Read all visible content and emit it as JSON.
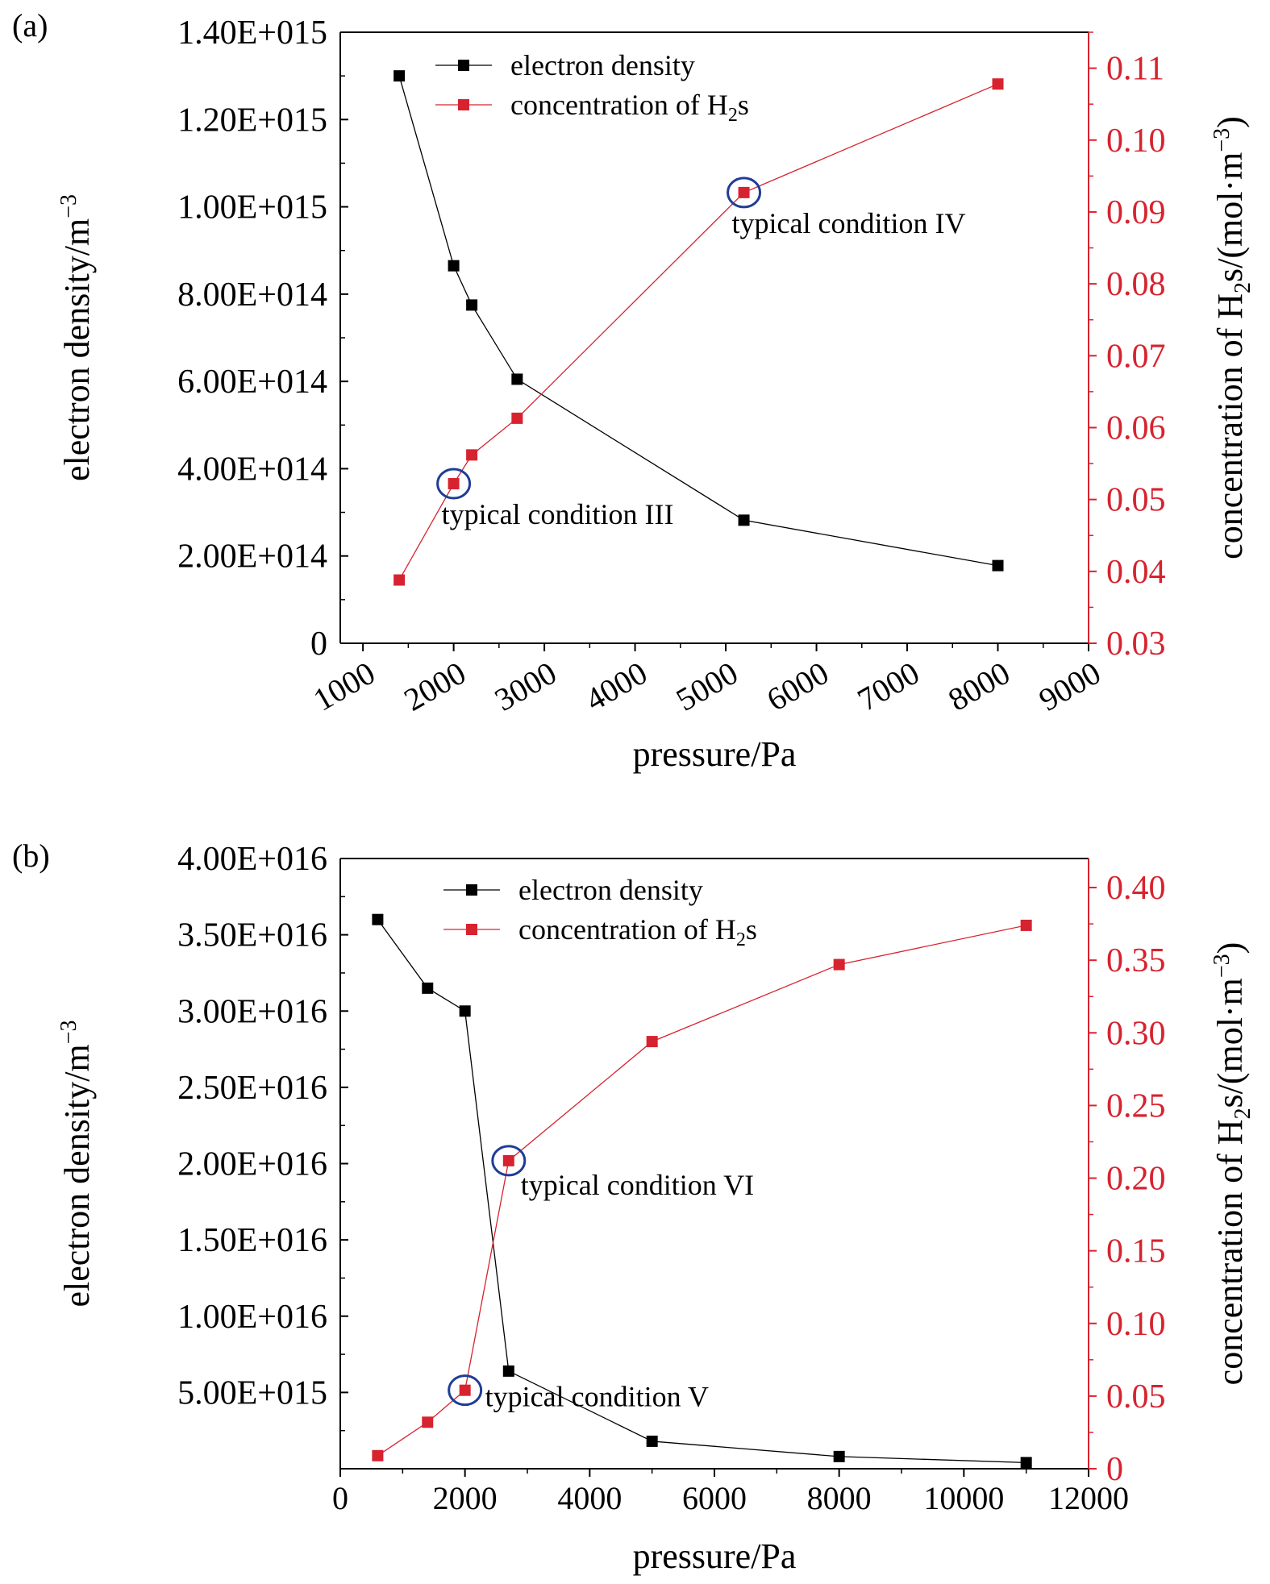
{
  "colors": {
    "left_axis": "#000000",
    "right_axis": "#d7232f",
    "highlight": "#1f3c96"
  },
  "chart_data": [
    {
      "panel_label": "(a)",
      "type": "line",
      "xlabel": "pressure/Pa",
      "xlim": [
        750,
        9000
      ],
      "xticks": [
        "1000",
        "2000",
        "3000",
        "4000",
        "5000",
        "6000",
        "7000",
        "8000",
        "9000"
      ],
      "xtick_values": [
        1000,
        2000,
        3000,
        4000,
        5000,
        6000,
        7000,
        8000,
        9000
      ],
      "ylabel_left": {
        "main": "electron density/m",
        "sup": "−3"
      },
      "ylim_left": [
        0,
        1400000000000000.0
      ],
      "yticks_left": [
        "0",
        "2.00E+014",
        "4.00E+014",
        "6.00E+014",
        "8.00E+014",
        "1.00E+015",
        "1.20E+015",
        "1.40E+015"
      ],
      "ytick_values_left": [
        0,
        200000000000000.0,
        400000000000000.0,
        600000000000000.0,
        800000000000000.0,
        1000000000000000.0,
        1200000000000000.0,
        1400000000000000.0
      ],
      "ylabel_right": {
        "pre": "concentration of H",
        "sub": "2",
        "mid": "s/(mol·m",
        "sup": "−3",
        "post": ")"
      },
      "ylim_right": [
        0.03,
        0.115
      ],
      "yticks_right": [
        "0.03",
        "0.04",
        "0.05",
        "0.06",
        "0.07",
        "0.08",
        "0.09",
        "0.10",
        "0.11"
      ],
      "ytick_values_right": [
        0.03,
        0.04,
        0.05,
        0.06,
        0.07,
        0.08,
        0.09,
        0.1,
        0.11
      ],
      "x_tick_rotation": -30,
      "series": [
        {
          "name": "electron density",
          "axis": "left",
          "color": "#000000",
          "x": [
            1400,
            2000,
            2200,
            2700,
            5200,
            8000
          ],
          "y": [
            1300000000000000.0,
            865000000000000.0,
            775000000000000.0,
            605000000000000.0,
            282000000000000.0,
            178000000000000.0
          ]
        },
        {
          "name_pre": "concentration of H",
          "name_sub": "2",
          "name_post": "s",
          "axis": "right",
          "color": "#d7232f",
          "x": [
            1400,
            2000,
            2200,
            2700,
            5200,
            8000
          ],
          "y": [
            0.0388,
            0.0522,
            0.0562,
            0.0613,
            0.0927,
            0.1078
          ]
        }
      ],
      "annotations": [
        {
          "text": "typical condition III",
          "x": 2000,
          "y": 0.0522,
          "axis": "right",
          "dx": -15,
          "dy": 50
        },
        {
          "text": "typical condition IV",
          "x": 5200,
          "y": 0.0927,
          "axis": "right",
          "dx": -15,
          "dy": 50
        }
      ],
      "legend_position": "top-center"
    },
    {
      "panel_label": "(b)",
      "type": "line",
      "xlabel": "pressure/Pa",
      "xlim": [
        0,
        12000
      ],
      "xticks": [
        "0",
        "2000",
        "4000",
        "6000",
        "8000",
        "10000",
        "12000"
      ],
      "xtick_values": [
        0,
        2000,
        4000,
        6000,
        8000,
        10000,
        12000
      ],
      "ylabel_left": {
        "main": "electron density/m",
        "sup": "−3"
      },
      "ylim_left": [
        0,
        4e+16
      ],
      "yticks_left": [
        "5.00E+015",
        "1.00E+016",
        "1.50E+016",
        "2.00E+016",
        "2.50E+016",
        "3.00E+016",
        "3.50E+016",
        "4.00E+016"
      ],
      "ytick_values_left": [
        5000000000000000.0,
        1e+16,
        1.5e+16,
        2e+16,
        2.5e+16,
        3e+16,
        3.5e+16,
        4e+16
      ],
      "ylabel_right": {
        "pre": "concentration of H",
        "sub": "2",
        "mid": "s/(mol·m",
        "sup": "−3",
        "post": ")"
      },
      "ylim_right": [
        0,
        0.42
      ],
      "yticks_right": [
        "0",
        "0.05",
        "0.10",
        "0.15",
        "0.20",
        "0.25",
        "0.30",
        "0.35",
        "0.40"
      ],
      "ytick_values_right": [
        0,
        0.05,
        0.1,
        0.15,
        0.2,
        0.25,
        0.3,
        0.35,
        0.4
      ],
      "x_tick_rotation": 0,
      "series": [
        {
          "name": "electron density",
          "axis": "left",
          "color": "#000000",
          "x": [
            600,
            1400,
            2000,
            2700,
            5000,
            8000,
            11000
          ],
          "y": [
            3.6e+16,
            3.15e+16,
            3e+16,
            6400000000000000.0,
            1800000000000000.0,
            800000000000000.0,
            400000000000000.0
          ]
        },
        {
          "name_pre": "concentration of H",
          "name_sub": "2",
          "name_post": "s",
          "axis": "right",
          "color": "#d7232f",
          "x": [
            600,
            1400,
            2000,
            2700,
            5000,
            8000,
            11000
          ],
          "y": [
            0.009,
            0.032,
            0.054,
            0.212,
            0.294,
            0.347,
            0.374
          ]
        }
      ],
      "annotations": [
        {
          "text": "typical condition V",
          "x": 2000,
          "y": 0.054,
          "axis": "right",
          "dx": 25,
          "dy": 20
        },
        {
          "text": "typical condition VI",
          "x": 2700,
          "y": 0.212,
          "axis": "right",
          "dx": 15,
          "dy": 42
        }
      ],
      "legend_position": "top-center"
    }
  ]
}
